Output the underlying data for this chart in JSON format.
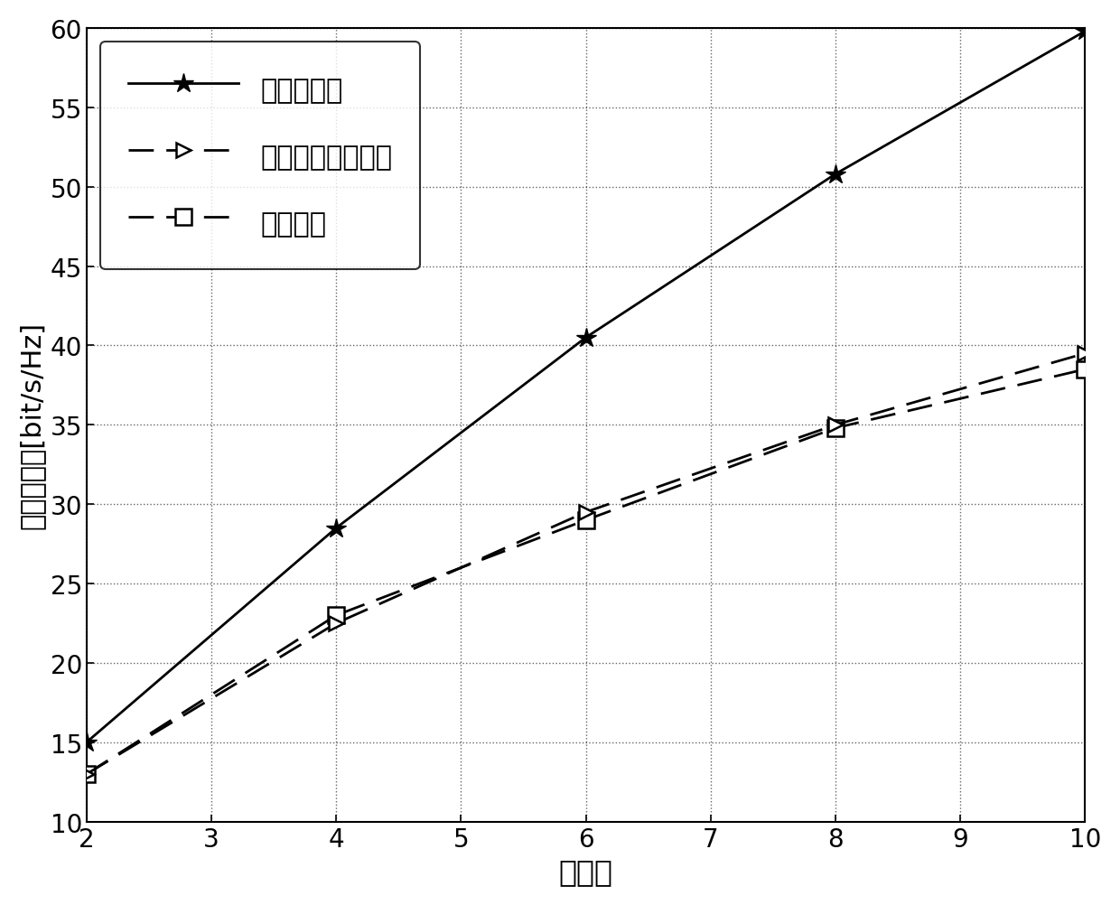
{
  "x": [
    2,
    4,
    6,
    8,
    10
  ],
  "y_proposed": [
    15.0,
    28.5,
    40.5,
    50.8,
    59.8
  ],
  "y_schmidt": [
    13.0,
    22.5,
    29.5,
    35.0,
    39.5
  ],
  "y_beamcontrol": [
    13.0,
    23.0,
    29.0,
    34.8,
    38.5
  ],
  "xlabel": "用户数",
  "ylabel": "系统和速率[bit/s/Hz]",
  "legend_proposed": "提出的算法",
  "legend_schmidt": "施密特正交化修正",
  "legend_beamcontrol": "波束控制",
  "xlim": [
    2,
    10
  ],
  "ylim": [
    10,
    60
  ],
  "xticks": [
    2,
    3,
    4,
    5,
    6,
    7,
    8,
    9,
    10
  ],
  "yticks": [
    10,
    15,
    20,
    25,
    30,
    35,
    40,
    45,
    50,
    55,
    60
  ],
  "background_color": "#ffffff",
  "line_color": "#000000"
}
